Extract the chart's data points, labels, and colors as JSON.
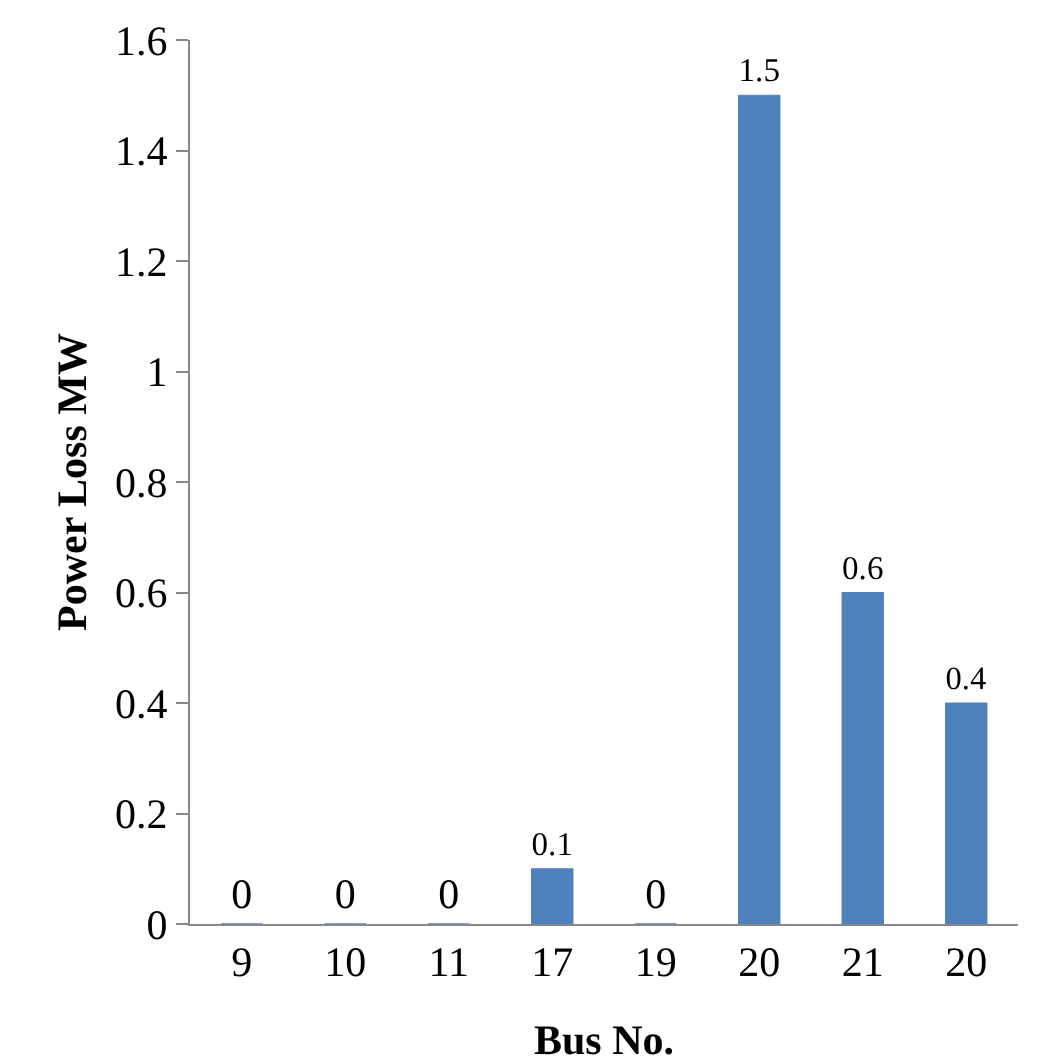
{
  "chart_data": {
    "type": "bar",
    "xlabel": "Bus No.",
    "ylabel": "Power Loss MW",
    "categories": [
      "9",
      "10",
      "11",
      "17",
      "19",
      "20",
      "21",
      "20"
    ],
    "values": [
      0,
      0,
      0,
      0.1,
      0,
      1.5,
      0.6,
      0.4
    ],
    "color": "#4f81bd",
    "ylim": [
      0,
      1.6
    ],
    "yticks": [
      0,
      0.2,
      0.4,
      0.6,
      0.8,
      1,
      1.2,
      1.4,
      1.6
    ],
    "data_labels": true
  }
}
